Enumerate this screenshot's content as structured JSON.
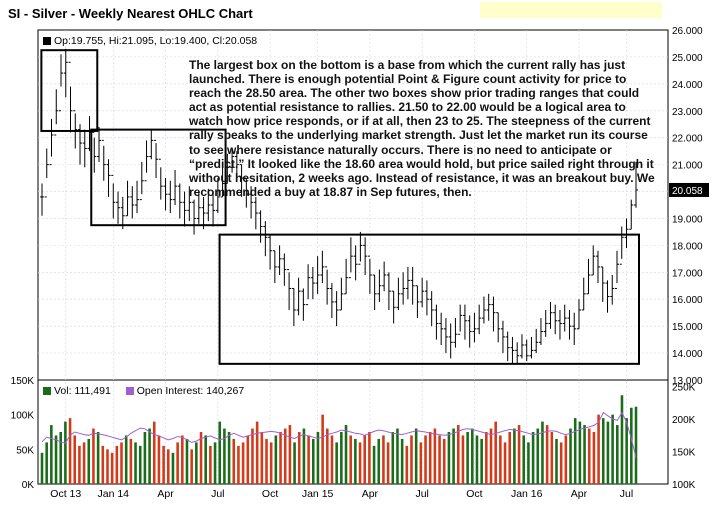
{
  "header": {
    "title": "SI - Silver - Weekly Nearest OHLC Chart"
  },
  "price_legend": {
    "text": "Op:19.755, Hi:21.095, Lo:19.400, Cl:20.058"
  },
  "volume_legend": {
    "vol_text": "Vol: 111,491",
    "oi_text": "Open Interest: 140,267"
  },
  "annotation": {
    "text": "The largest box on the bottom is a base from which the current rally has just launched.  There is enough potential Point & Figure count activity for price to reach the 28.50 area.  The other two boxes show prior trading ranges that could act as potential resistance to rallies.  21.50 to 22.00 would be a logical area to watch how price responds, or if at all, then 23 to 25.  The steepness of the current rally speaks to the underlying market strength.  Just let the market run its course to see where resistance naturally occurs.  There is no need to anticipate or “predict.”  It looked like the 18.60 area would hold, but price sailed right through it without hesitation, 2 weeks ago.  Instead of resistance, it was an breakout buy.  We recommended a buy at 18.87 in Sep futures, then."
  },
  "colors": {
    "up": "#1a6b1a",
    "down": "#d23a1a",
    "price_bar": "#000000",
    "open_interest": "#a060d0",
    "last_price_bg": "#000000"
  },
  "chart_data": [
    {
      "type": "ohlc",
      "title": "SI - Silver - Weekly Nearest OHLC Chart",
      "x_tick_labels": [
        "Oct 13",
        "Jan 14",
        "Apr",
        "Jul",
        "Oct",
        "Jan 15",
        "Apr",
        "Jul",
        "Oct",
        "Jan 16",
        "Apr",
        "Jul"
      ],
      "y_tick_labels": [
        "26.000",
        "25.000",
        "24.000",
        "23.000",
        "22.000",
        "21.000",
        "20.000",
        "19.000",
        "18.000",
        "17.000",
        "16.000",
        "15.000",
        "14.000",
        "13.000"
      ],
      "ylim": [
        13,
        26
      ],
      "last_value_label": "20.058",
      "series_close": [
        19.8,
        21.0,
        22.1,
        23.0,
        24.4,
        24.8,
        23.0,
        22.3,
        21.8,
        21.6,
        22.2,
        21.3,
        21.9,
        21.0,
        20.6,
        19.6,
        19.4,
        19.1,
        19.8,
        19.5,
        19.7,
        20.4,
        21.3,
        21.9,
        21.2,
        20.2,
        19.9,
        19.7,
        20.2,
        19.6,
        19.3,
        19.6,
        19.0,
        19.4,
        19.2,
        19.5,
        19.3,
        19.8,
        20.3,
        20.9,
        21.3,
        21.0,
        20.5,
        19.9,
        19.6,
        19.2,
        18.7,
        18.3,
        17.8,
        17.2,
        17.5,
        17.1,
        16.4,
        15.6,
        16.3,
        15.8,
        16.8,
        16.6,
        16.9,
        17.2,
        16.4,
        15.9,
        15.6,
        16.2,
        16.8,
        17.6,
        17.3,
        18.0,
        17.6,
        16.9,
        16.2,
        16.5,
        16.9,
        16.3,
        15.7,
        16.2,
        16.4,
        16.7,
        16.5,
        15.9,
        16.3,
        16.0,
        15.6,
        15.1,
        14.9,
        14.6,
        14.4,
        14.7,
        15.4,
        15.2,
        14.8,
        14.9,
        15.3,
        15.6,
        15.8,
        15.5,
        14.9,
        14.6,
        14.2,
        14.1,
        13.9,
        14.3,
        13.9,
        14.1,
        14.4,
        14.8,
        15.1,
        15.5,
        15.2,
        15.1,
        15.3,
        15.0,
        14.9,
        15.6,
        16.2,
        16.9,
        17.6,
        17.2,
        16.6,
        16.1,
        16.4,
        17.3,
        18.3,
        18.6,
        19.5,
        20.06
      ],
      "series_high": [
        20.3,
        21.6,
        22.7,
        23.8,
        25.1,
        25.3,
        23.9,
        22.9,
        22.5,
        22.3,
        22.8,
        22.0,
        22.4,
        21.7,
        21.2,
        20.3,
        20.0,
        19.8,
        20.4,
        20.2,
        20.4,
        21.1,
        21.9,
        22.3,
        21.8,
        20.9,
        20.5,
        20.4,
        20.8,
        20.3,
        20.0,
        20.2,
        19.7,
        20.0,
        19.8,
        20.1,
        20.0,
        20.5,
        21.0,
        21.4,
        21.6,
        21.5,
        21.0,
        20.5,
        20.2,
        19.8,
        19.3,
        18.9,
        18.4,
        17.8,
        18.0,
        17.7,
        17.0,
        16.4,
        16.8,
        16.4,
        17.3,
        17.2,
        17.6,
        17.8,
        17.1,
        16.6,
        16.3,
        16.8,
        17.5,
        18.3,
        18.0,
        18.5,
        18.3,
        17.5,
        16.9,
        17.1,
        17.4,
        17.0,
        16.3,
        16.8,
        17.0,
        17.2,
        17.2,
        16.5,
        16.8,
        16.7,
        16.3,
        15.8,
        15.5,
        15.3,
        15.1,
        15.3,
        15.8,
        15.8,
        15.4,
        15.5,
        15.8,
        16.1,
        16.2,
        16.1,
        15.5,
        15.2,
        14.8,
        14.6,
        14.4,
        14.7,
        14.5,
        14.6,
        14.9,
        15.3,
        15.6,
        15.9,
        15.8,
        15.6,
        15.8,
        15.6,
        15.5,
        16.0,
        16.8,
        17.5,
        18.0,
        17.8,
        17.2,
        16.7,
        16.9,
        17.8,
        18.7,
        19.0,
        19.7,
        21.1
      ],
      "series_low": [
        19.1,
        20.5,
        21.3,
        22.5,
        23.9,
        23.5,
        22.2,
        21.6,
        21.0,
        20.9,
        21.5,
        20.7,
        21.1,
        20.4,
        19.8,
        19.0,
        18.8,
        18.6,
        19.1,
        19.0,
        19.2,
        19.9,
        20.7,
        21.2,
        20.5,
        19.7,
        19.3,
        19.2,
        19.5,
        19.0,
        18.7,
        18.9,
        18.4,
        18.8,
        18.6,
        18.9,
        18.7,
        19.2,
        19.8,
        20.3,
        20.7,
        20.4,
        19.8,
        19.4,
        19.0,
        18.6,
        18.1,
        17.6,
        17.1,
        16.6,
        16.9,
        16.5,
        15.6,
        15.0,
        15.4,
        15.2,
        16.0,
        16.0,
        16.2,
        16.6,
        15.8,
        15.3,
        15.0,
        15.6,
        16.2,
        17.0,
        16.7,
        17.4,
        16.9,
        16.2,
        15.6,
        15.9,
        16.3,
        15.6,
        15.1,
        15.6,
        15.8,
        16.0,
        15.8,
        15.3,
        15.7,
        15.4,
        15.0,
        14.5,
        14.3,
        14.0,
        13.8,
        14.2,
        14.8,
        14.5,
        14.2,
        14.4,
        14.7,
        15.1,
        15.2,
        14.8,
        14.4,
        14.0,
        13.7,
        13.6,
        13.6,
        13.8,
        13.7,
        13.8,
        14.0,
        14.3,
        14.6,
        14.9,
        14.7,
        14.5,
        14.8,
        14.5,
        14.3,
        14.9,
        15.6,
        16.2,
        16.9,
        16.6,
        15.9,
        15.5,
        15.8,
        16.6,
        17.5,
        17.9,
        18.6,
        19.4
      ]
    },
    {
      "type": "bar",
      "title": "",
      "y_tick_labels": [
        "150K",
        "100K",
        "50K",
        "0K"
      ],
      "ylim_left": [
        0,
        150000
      ],
      "right_tick_labels": [
        "250K",
        "200K",
        "150K",
        "100K"
      ],
      "ylim_right": [
        100000,
        260000
      ],
      "series": [
        {
          "name": "Vol: 111,491",
          "values": [
            45000,
            60000,
            85000,
            70000,
            75000,
            90000,
            95000,
            70000,
            55000,
            60000,
            65000,
            80000,
            75000,
            55000,
            50000,
            45000,
            55000,
            60000,
            70000,
            65000,
            60000,
            55000,
            75000,
            80000,
            90000,
            70000,
            55000,
            50000,
            45000,
            60000,
            70000,
            65000,
            50000,
            60000,
            75000,
            70000,
            55000,
            60000,
            90000,
            80000,
            75000,
            65000,
            55000,
            60000,
            70000,
            80000,
            90000,
            75000,
            65000,
            60000,
            70000,
            75000,
            80000,
            85000,
            60000,
            75000,
            80000,
            70000,
            65000,
            75000,
            100000,
            80000,
            70000,
            60000,
            75000,
            85000,
            70000,
            65000,
            60000,
            70000,
            75000,
            55000,
            65000,
            70000,
            60000,
            75000,
            80000,
            65000,
            55000,
            70000,
            80000,
            60000,
            70000,
            75000,
            80000,
            70000,
            65000,
            75000,
            80000,
            85000,
            70000,
            75000,
            80000,
            70000,
            65000,
            75000,
            80000,
            90000,
            70000,
            60000,
            75000,
            80000,
            85000,
            70000,
            60000,
            75000,
            80000,
            90000,
            85000,
            75000,
            65000,
            60000,
            70000,
            80000,
            95000,
            90000,
            85000,
            80000,
            75000,
            100000,
            95000,
            90000,
            100000,
            85000,
            128000,
            95000,
            110000,
            111491
          ]
        },
        {
          "name": "Open Interest: 140,267",
          "values": [
            165000,
            172000,
            170000,
            168000,
            165000,
            163000,
            175000,
            180000,
            178000,
            176000,
            175000,
            178000,
            177000,
            176000,
            174000,
            172000,
            170000,
            168000,
            172000,
            178000,
            182000,
            186000,
            185000,
            180000,
            176000,
            174000,
            171000,
            168000,
            170000,
            173000,
            172000,
            168000,
            164000,
            166000,
            170000,
            172000,
            174000,
            171000,
            168000,
            170000,
            175000,
            178000,
            175000,
            172000,
            174000,
            176000,
            178000,
            179000,
            180000,
            181000,
            180000,
            178000,
            175000,
            172000,
            170000,
            174000,
            176000,
            174000,
            172000,
            170000,
            172000,
            176000,
            178000,
            180000,
            183000,
            182000,
            180000,
            178000,
            177000,
            175000,
            178000,
            181000,
            183000,
            182000,
            180000,
            178000,
            177000,
            176000,
            178000,
            180000,
            182000,
            181000,
            180000,
            178000,
            177000,
            176000,
            175000,
            176000,
            178000,
            181000,
            184000,
            185000,
            184000,
            182000,
            180000,
            178000,
            176000,
            178000,
            180000,
            182000,
            184000,
            183000,
            182000,
            180000,
            178000,
            176000,
            177000,
            179000,
            181000,
            182000,
            181000,
            178000,
            176000,
            178000,
            181000,
            184000,
            186000,
            188000,
            190000,
            195000,
            210000,
            205000,
            200000,
            198000,
            210000,
            195000,
            170000,
            140267
          ]
        }
      ]
    }
  ]
}
